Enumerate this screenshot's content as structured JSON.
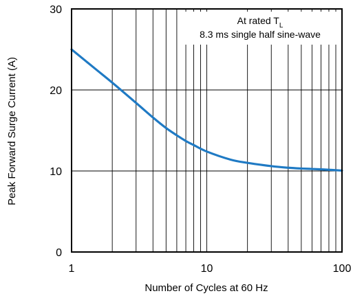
{
  "chart_data": {
    "type": "line",
    "title": "",
    "xlabel": "Number of Cycles at 60 Hz",
    "ylabel": "Peak Forward Surge Current (A)",
    "x_scale": "log",
    "xlim": [
      1,
      100
    ],
    "ylim": [
      0,
      30
    ],
    "x_ticks": [
      1,
      10,
      100
    ],
    "x_tick_labels": [
      "1",
      "10",
      "100"
    ],
    "y_ticks": [
      0,
      10,
      20,
      30
    ],
    "y_tick_labels": [
      "0",
      "10",
      "20",
      "30"
    ],
    "grid": true,
    "line_color": "#1f7ac4",
    "annotation": {
      "line1_prefix": "At rated T",
      "line1_subscript": "L",
      "line2": "8.3 ms single half sine-wave"
    },
    "series": [
      {
        "x": [
          1,
          1.5,
          2,
          3,
          4,
          5,
          6,
          7,
          8,
          10,
          15,
          20,
          30,
          40,
          50,
          60,
          80,
          100
        ],
        "values": [
          25.0,
          22.6,
          20.9,
          18.4,
          16.6,
          15.3,
          14.4,
          13.7,
          13.2,
          12.4,
          11.4,
          11.0,
          10.6,
          10.4,
          10.3,
          10.25,
          10.15,
          10.05
        ]
      }
    ]
  }
}
